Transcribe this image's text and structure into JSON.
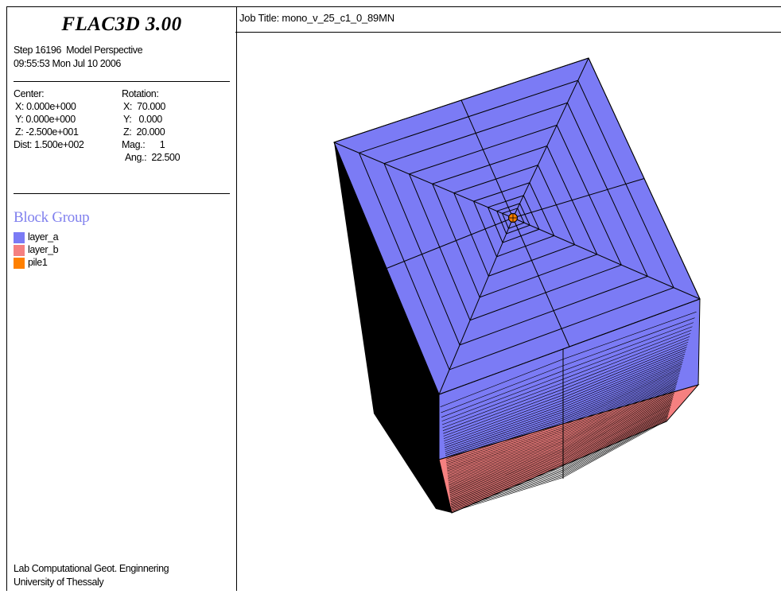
{
  "app": {
    "title": "FLAC3D 3.00",
    "step_line": "Step 16196  Model Perspective",
    "datetime": "09:55:53 Mon Jul 10 2006"
  },
  "view_params": {
    "center_label": "Center:",
    "center_x": "X: 0.000e+000",
    "center_y": "Y: 0.000e+000",
    "center_z": "Z: -2.500e+001",
    "dist": "Dist: 1.500e+002",
    "rotation_label": "Rotation:",
    "rot_x": "X:  70.000",
    "rot_y": "Y:   0.000",
    "rot_z": "Z:  20.000",
    "mag": "Mag.:      1",
    "ang": "Ang.:  22.500"
  },
  "legend": {
    "title": "Block Group",
    "items": [
      {
        "label": "layer_a",
        "color": "#7b7bf5"
      },
      {
        "label": "layer_b",
        "color": "#f58080"
      },
      {
        "label": "pile1",
        "color": "#ff8000"
      }
    ]
  },
  "footer": {
    "line1": "Lab Computational Geot. Enginnering",
    "line2": "University of Thessaly"
  },
  "job": {
    "title": "Job Title: mono_v_25_c1_0_89MN"
  },
  "colors": {
    "layer_a": "#7b7bf5",
    "layer_b": "#f58080",
    "pile1": "#ff8000",
    "legend_title": "#8080ee"
  }
}
